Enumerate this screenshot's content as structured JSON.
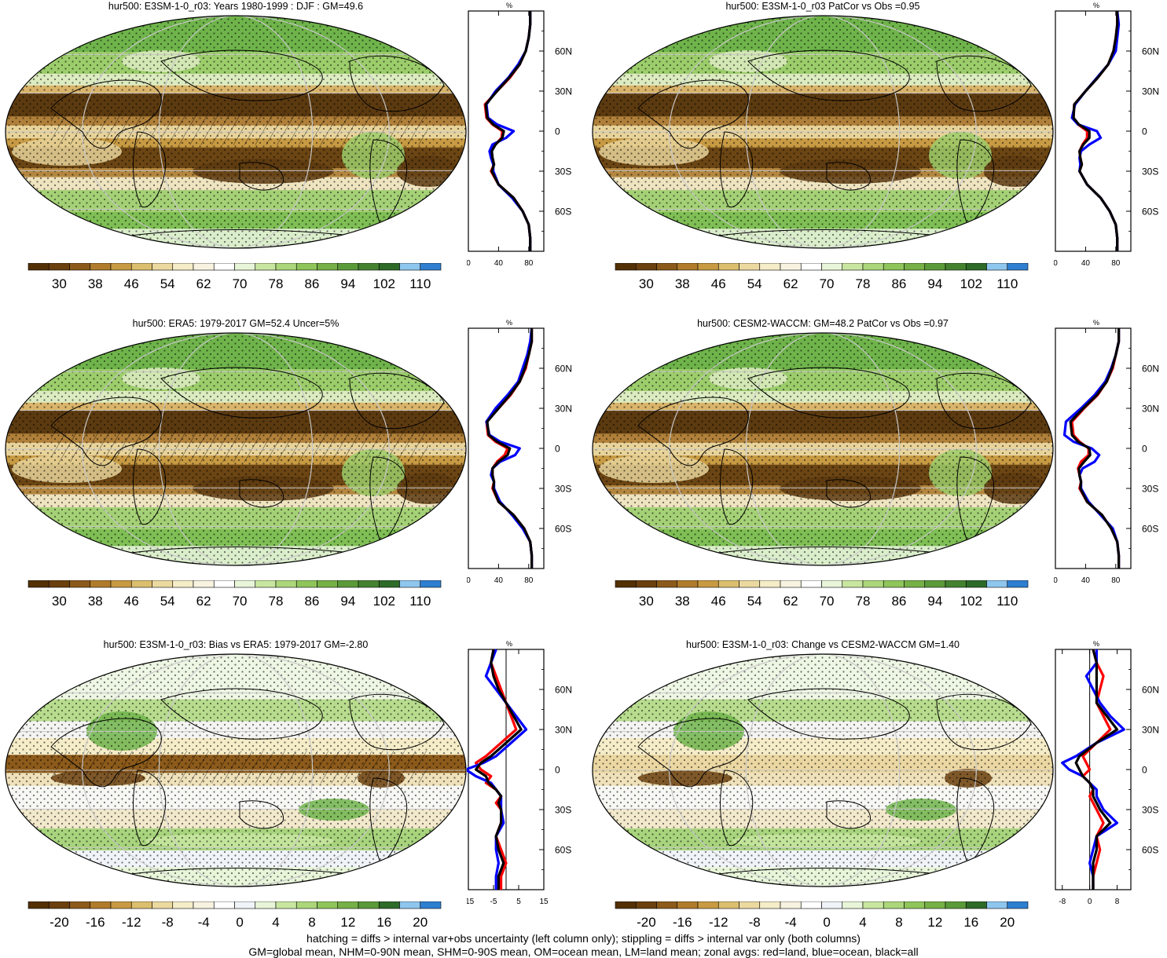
{
  "footer": {
    "line1": "hatching = diffs > internal var+obs uncertainty (left column only); stippling = diffs > internal var only (both columns)",
    "line2": "GM=global mean, NHM=0-90N mean, SHM=0-90S mean, OM=ocean mean, LM=land mean; zonal avgs: red=land, blue=ocean, black=all"
  },
  "colors": {
    "land": "#ff0000",
    "ocean": "#0000ff",
    "all": "#000000"
  },
  "colorbars": {
    "abs": {
      "colors": [
        "#543005",
        "#6b400f",
        "#8c5a1a",
        "#b07c2c",
        "#c79a43",
        "#dcbf6e",
        "#ebd9a0",
        "#f5ecc8",
        "#f8f3e0",
        "#ffffff",
        "#e8f5d9",
        "#c8e6a0",
        "#abd67a",
        "#8fc55b",
        "#76b047",
        "#5b9a39",
        "#448230",
        "#2e6a28",
        "#8ec6ee",
        "#2e7fd0"
      ],
      "labels": [
        "30",
        "38",
        "46",
        "54",
        "62",
        "70",
        "78",
        "86",
        "94",
        "102",
        "110"
      ]
    },
    "diff": {
      "colors": [
        "#543005",
        "#6b400f",
        "#8c5a1a",
        "#b07c2c",
        "#c79a43",
        "#dcbf6e",
        "#ebd9a0",
        "#f5ecc8",
        "#f8f3e0",
        "#ffffff",
        "#f0f4f8",
        "#e8f5d9",
        "#c8e6a0",
        "#abd67a",
        "#8fc55b",
        "#76b047",
        "#5b9a39",
        "#2e6a28",
        "#8ec6ee",
        "#2e7fd0"
      ],
      "labels": [
        "-20",
        "-16",
        "-12",
        "-8",
        "-4",
        "0",
        "4",
        "8",
        "12",
        "16",
        "20"
      ]
    }
  },
  "panels": [
    {
      "title": "hur500: E3SM-1-0_r03: Years 1980-1999 : DJF : GM=49.6",
      "kind": "abs",
      "hatch": true
    },
    {
      "title": "hur500: E3SM-1-0_r03 PatCor vs Obs =0.95",
      "kind": "abs",
      "hatch": false
    },
    {
      "title": "hur500: ERA5: 1979-2017 GM=52.4 Uncer=5%",
      "kind": "abs",
      "hatch": true
    },
    {
      "title": "hur500: CESM2-WACCM: GM=48.2 PatCor vs Obs =0.97",
      "kind": "abs",
      "hatch": false
    },
    {
      "title": "hur500: E3SM-1-0_r03: Bias vs ERA5: 1979-2017 GM=-2.80",
      "kind": "diff",
      "hatch": true
    },
    {
      "title": "hur500: E3SM-1-0_r03: Change vs CESM2-WACCM GM=1.40",
      "kind": "diff",
      "hatch": false
    }
  ],
  "chart_data": [
    {
      "type": "line",
      "title": "%",
      "lat_ticks": [
        "60N",
        "30N",
        "0",
        "30S",
        "60S"
      ],
      "xticks": [
        "0",
        "40",
        "80"
      ],
      "xlim": [
        0,
        100
      ],
      "ylim": [
        -90,
        90
      ],
      "series": [
        {
          "lat": [
            90,
            80,
            70,
            60,
            50,
            40,
            30,
            20,
            10,
            5,
            0,
            -5,
            -10,
            -15,
            -20,
            -25,
            -30,
            -40,
            -50,
            -60,
            -70,
            -80,
            -90
          ],
          "values": [
            82,
            82,
            80,
            76,
            68,
            55,
            38,
            22,
            24,
            32,
            45,
            44,
            36,
            30,
            32,
            34,
            30,
            40,
            60,
            72,
            80,
            82,
            82
          ]
        },
        {
          "lat": [
            90,
            80,
            70,
            60,
            50,
            40,
            30,
            20,
            10,
            5,
            0,
            -5,
            -10,
            -15,
            -20,
            -25,
            -30,
            -40,
            -50,
            -60,
            -70,
            -80,
            -90
          ],
          "values": [
            82,
            82,
            80,
            76,
            66,
            53,
            36,
            24,
            26,
            38,
            60,
            50,
            32,
            28,
            30,
            33,
            33,
            40,
            58,
            72,
            80,
            82,
            82
          ]
        },
        {
          "lat": [
            90,
            80,
            70,
            60,
            50,
            40,
            30,
            20,
            10,
            5,
            0,
            -5,
            -10,
            -15,
            -20,
            -25,
            -30,
            -40,
            -50,
            -60,
            -70,
            -80,
            -90
          ],
          "values": [
            82,
            82,
            80,
            76,
            68,
            54,
            38,
            23,
            25,
            33,
            47,
            45,
            36,
            31,
            32,
            34,
            31,
            40,
            60,
            72,
            80,
            82,
            82
          ]
        }
      ]
    },
    {
      "type": "line",
      "title": "%",
      "lat_ticks": [
        "60N",
        "30N",
        "0",
        "30S",
        "60S"
      ],
      "xticks": [
        "0",
        "40",
        "80"
      ],
      "xlim": [
        0,
        100
      ],
      "ylim": [
        -90,
        90
      ],
      "series": [
        {
          "lat": [
            90,
            80,
            70,
            60,
            50,
            40,
            30,
            20,
            10,
            5,
            0,
            -5,
            -10,
            -15,
            -20,
            -25,
            -30,
            -40,
            -50,
            -60,
            -70,
            -80,
            -90
          ],
          "values": [
            82,
            82,
            80,
            77,
            70,
            56,
            40,
            25,
            24,
            30,
            42,
            42,
            36,
            32,
            33,
            35,
            32,
            42,
            60,
            72,
            80,
            82,
            82
          ]
        },
        {
          "lat": [
            90,
            80,
            70,
            60,
            50,
            40,
            30,
            20,
            10,
            5,
            0,
            -5,
            -10,
            -15,
            -20,
            -25,
            -30,
            -40,
            -50,
            -60,
            -70,
            -80,
            -90
          ],
          "values": [
            82,
            84,
            82,
            80,
            70,
            55,
            40,
            26,
            22,
            30,
            55,
            60,
            45,
            34,
            32,
            33,
            32,
            42,
            60,
            72,
            80,
            82,
            82
          ]
        },
        {
          "lat": [
            90,
            80,
            70,
            60,
            50,
            40,
            30,
            20,
            10,
            5,
            0,
            -5,
            -10,
            -15,
            -20,
            -25,
            -30,
            -40,
            -50,
            -60,
            -70,
            -80,
            -90
          ],
          "values": [
            82,
            82,
            80,
            77,
            70,
            56,
            40,
            25,
            24,
            31,
            45,
            45,
            37,
            32,
            33,
            35,
            32,
            42,
            60,
            72,
            80,
            82,
            82
          ]
        }
      ]
    },
    {
      "type": "line",
      "title": "%",
      "lat_ticks": [
        "60N",
        "30N",
        "0",
        "30S",
        "60S"
      ],
      "xticks": [
        "0",
        "40",
        "80"
      ],
      "xlim": [
        0,
        100
      ],
      "ylim": [
        -90,
        90
      ],
      "series": [
        {
          "lat": [
            90,
            80,
            70,
            60,
            50,
            40,
            30,
            20,
            10,
            5,
            0,
            -5,
            -10,
            -15,
            -20,
            -25,
            -30,
            -40,
            -50,
            -60,
            -70,
            -80,
            -90
          ],
          "values": [
            84,
            84,
            80,
            76,
            68,
            56,
            40,
            24,
            26,
            36,
            52,
            48,
            38,
            32,
            32,
            34,
            32,
            40,
            60,
            74,
            82,
            84,
            84
          ]
        },
        {
          "lat": [
            90,
            80,
            70,
            60,
            50,
            40,
            30,
            20,
            10,
            5,
            0,
            -5,
            -10,
            -15,
            -20,
            -25,
            -30,
            -40,
            -50,
            -60,
            -70,
            -80,
            -90
          ],
          "values": [
            84,
            82,
            78,
            72,
            66,
            52,
            36,
            24,
            28,
            42,
            68,
            62,
            42,
            32,
            30,
            34,
            34,
            42,
            58,
            72,
            82,
            84,
            84
          ]
        },
        {
          "lat": [
            90,
            80,
            70,
            60,
            50,
            40,
            30,
            20,
            10,
            5,
            0,
            -5,
            -10,
            -15,
            -20,
            -25,
            -30,
            -40,
            -50,
            -60,
            -70,
            -80,
            -90
          ],
          "values": [
            84,
            84,
            80,
            75,
            68,
            55,
            40,
            25,
            27,
            38,
            55,
            52,
            40,
            32,
            32,
            34,
            33,
            40,
            60,
            74,
            82,
            84,
            84
          ]
        }
      ]
    },
    {
      "type": "line",
      "title": "%",
      "lat_ticks": [
        "60N",
        "30N",
        "0",
        "30S",
        "60S"
      ],
      "xticks": [
        "0",
        "40",
        "80"
      ],
      "xlim": [
        0,
        100
      ],
      "ylim": [
        -90,
        90
      ],
      "series": [
        {
          "lat": [
            90,
            80,
            70,
            60,
            50,
            40,
            30,
            20,
            10,
            5,
            0,
            -5,
            -10,
            -15,
            -20,
            -25,
            -30,
            -40,
            -50,
            -60,
            -70,
            -80,
            -90
          ],
          "values": [
            84,
            84,
            80,
            76,
            68,
            56,
            38,
            22,
            24,
            32,
            44,
            44,
            34,
            30,
            32,
            34,
            32,
            42,
            62,
            74,
            82,
            84,
            84
          ]
        },
        {
          "lat": [
            90,
            80,
            70,
            60,
            50,
            40,
            30,
            20,
            10,
            5,
            0,
            -5,
            -10,
            -15,
            -20,
            -25,
            -30,
            -40,
            -50,
            -60,
            -70,
            -80,
            -90
          ],
          "values": [
            84,
            84,
            80,
            74,
            66,
            52,
            34,
            14,
            12,
            24,
            48,
            58,
            52,
            36,
            32,
            34,
            34,
            44,
            60,
            76,
            82,
            84,
            84
          ]
        },
        {
          "lat": [
            90,
            80,
            70,
            60,
            50,
            40,
            30,
            20,
            10,
            5,
            0,
            -5,
            -10,
            -15,
            -20,
            -25,
            -30,
            -40,
            -50,
            -60,
            -70,
            -80,
            -90
          ],
          "values": [
            84,
            84,
            80,
            75,
            68,
            55,
            37,
            20,
            22,
            30,
            45,
            46,
            38,
            31,
            32,
            34,
            33,
            42,
            62,
            74,
            82,
            84,
            84
          ]
        }
      ]
    },
    {
      "type": "line",
      "title": "%",
      "lat_ticks": [
        "60N",
        "30N",
        "0",
        "30S",
        "60S"
      ],
      "xticks": [
        "-15",
        "-5",
        "5",
        "15"
      ],
      "xlim": [
        -15,
        15
      ],
      "ylim": [
        -90,
        90
      ],
      "series": [
        {
          "lat": [
            90,
            80,
            70,
            60,
            50,
            40,
            30,
            20,
            10,
            5,
            0,
            -5,
            -10,
            -15,
            -20,
            -25,
            -30,
            -40,
            -50,
            -60,
            -70,
            -80,
            -90
          ],
          "values": [
            -5,
            -6,
            -4,
            -2,
            0,
            2,
            4,
            -2,
            -8,
            -12,
            -10,
            -6,
            -8,
            -4,
            -2,
            -4,
            -2,
            -2,
            -4,
            -2,
            0,
            -2,
            -2
          ]
        },
        {
          "lat": [
            90,
            80,
            70,
            60,
            50,
            40,
            30,
            20,
            10,
            5,
            0,
            -5,
            -10,
            -15,
            -20,
            -25,
            -30,
            -40,
            -50,
            -60,
            -70,
            -80,
            -90
          ],
          "values": [
            -4,
            -6,
            -8,
            -4,
            0,
            4,
            8,
            2,
            -4,
            -9,
            -16,
            -12,
            -6,
            -4,
            -2,
            -2,
            -2,
            -1,
            -4,
            -4,
            -3,
            -4,
            -4
          ]
        },
        {
          "lat": [
            90,
            80,
            70,
            60,
            50,
            40,
            30,
            20,
            10,
            5,
            0,
            -5,
            -10,
            -15,
            -20,
            -25,
            -30,
            -40,
            -50,
            -60,
            -70,
            -80,
            -90
          ],
          "values": [
            -5,
            -6,
            -5,
            -3,
            0,
            3,
            6,
            0,
            -6,
            -10,
            -12,
            -8,
            -7,
            -4,
            -2,
            -3,
            -2,
            -2,
            -4,
            -3,
            -1,
            -3,
            -3
          ]
        }
      ]
    },
    {
      "type": "line",
      "title": "%",
      "lat_ticks": [
        "60N",
        "30N",
        "0",
        "30S",
        "60S"
      ],
      "xticks": [
        "-8",
        "0",
        "8"
      ],
      "xlim": [
        -10,
        12
      ],
      "ylim": [
        -90,
        90
      ],
      "series": [
        {
          "lat": [
            90,
            80,
            70,
            60,
            50,
            40,
            30,
            20,
            10,
            5,
            0,
            -5,
            -10,
            -15,
            -20,
            -25,
            -30,
            -40,
            -50,
            -60,
            -70,
            -80,
            -90
          ],
          "values": [
            1,
            2,
            4,
            3,
            2,
            4,
            6,
            2,
            -2,
            -1,
            0,
            -2,
            0,
            1,
            0,
            1,
            2,
            4,
            2,
            3,
            2,
            1,
            1
          ]
        },
        {
          "lat": [
            90,
            80,
            70,
            60,
            50,
            40,
            30,
            20,
            10,
            5,
            0,
            -5,
            -10,
            -15,
            -20,
            -25,
            -30,
            -40,
            -50,
            -60,
            -70,
            -80,
            -90
          ],
          "values": [
            2,
            2,
            -1,
            1,
            3,
            6,
            10,
            2,
            -4,
            -8,
            -6,
            -2,
            0,
            2,
            2,
            3,
            4,
            8,
            2,
            1,
            0,
            1,
            1
          ]
        },
        {
          "lat": [
            90,
            80,
            70,
            60,
            50,
            40,
            30,
            20,
            10,
            5,
            0,
            -5,
            -10,
            -15,
            -20,
            -25,
            -30,
            -40,
            -50,
            -60,
            -70,
            -80,
            -90
          ],
          "values": [
            1,
            2,
            2,
            2,
            2,
            5,
            8,
            2,
            -3,
            -4,
            -3,
            -2,
            0,
            1,
            1,
            2,
            3,
            6,
            2,
            2,
            1,
            1,
            1
          ]
        }
      ]
    }
  ]
}
